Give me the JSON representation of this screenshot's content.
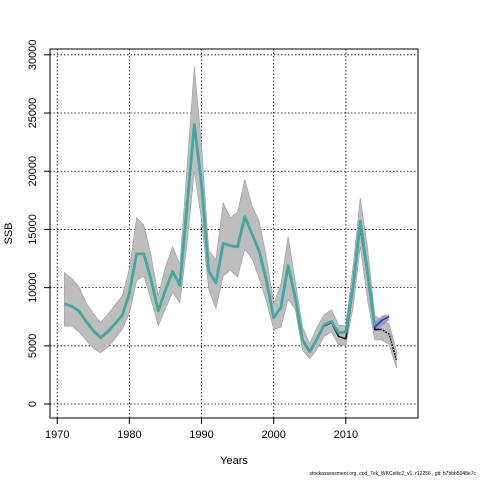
{
  "chart_data": {
    "type": "line",
    "title": "",
    "xlabel": "Years",
    "ylabel": "SSB",
    "xlim": [
      1969,
      2020
    ],
    "ylim": [
      -1200,
      30500
    ],
    "x_ticks": [
      1970,
      1980,
      1990,
      2000,
      2010
    ],
    "y_ticks": [
      0,
      5000,
      10000,
      15000,
      20000,
      25000,
      30000
    ],
    "grid": true,
    "legend": "none",
    "colors": {
      "band": "#bdbdbd",
      "band_edge": "#9a9a9a",
      "main": "#40a8a0",
      "previous": "#111111",
      "retro_line": "#3b3b9e",
      "retro_band": "#8a8ad6"
    },
    "confidence_band": {
      "x": [
        1971,
        1972,
        1973,
        1974,
        1975,
        1976,
        1977,
        1978,
        1979,
        1980,
        1981,
        1982,
        1983,
        1984,
        1985,
        1986,
        1987,
        1988,
        1989,
        1990,
        1991,
        1992,
        1993,
        1994,
        1995,
        1996,
        1997,
        1998,
        1999,
        2000,
        2001,
        2002,
        2003,
        2004,
        2005,
        2006,
        2007,
        2008,
        2009,
        2010,
        2011,
        2012,
        2013,
        2014,
        2015,
        2016,
        2017
      ],
      "lower": [
        6700,
        6700,
        6200,
        5500,
        4800,
        4400,
        4900,
        5600,
        6400,
        7800,
        10600,
        11000,
        9000,
        6700,
        8200,
        9600,
        8700,
        13800,
        20000,
        15800,
        9800,
        8200,
        11000,
        11500,
        10900,
        13300,
        12500,
        10800,
        8800,
        6400,
        6600,
        9000,
        8100,
        4600,
        3900,
        4700,
        5800,
        6200,
        5100,
        5000,
        8300,
        13500,
        9000,
        5500,
        5500,
        5100,
        3100
      ],
      "upper": [
        11300,
        10800,
        10100,
        8700,
        7800,
        7000,
        7700,
        8500,
        9300,
        11600,
        16000,
        15400,
        12800,
        9300,
        11800,
        13500,
        12000,
        20400,
        29000,
        22300,
        13200,
        12400,
        17300,
        16000,
        16500,
        19300,
        17000,
        15700,
        12600,
        8600,
        10300,
        14400,
        10500,
        6600,
        5200,
        6600,
        7700,
        8100,
        6800,
        6700,
        11900,
        17700,
        13500,
        7600,
        7200,
        6900,
        4600
      ]
    },
    "series": [
      {
        "x": [
          1971,
          1972,
          1973,
          1974,
          1975,
          1976,
          1977,
          1978,
          1979,
          1980,
          1981,
          1982,
          1983,
          1984,
          1985,
          1986,
          1987,
          1988,
          1989,
          1990,
          1991,
          1992,
          1993,
          1994,
          1995,
          1996,
          1997,
          1998,
          1999,
          2000,
          2001,
          2002,
          2003,
          2004,
          2005,
          2006,
          2007,
          2008,
          2009,
          2010,
          2011,
          2012,
          2013,
          2014
        ],
        "values": [
          8600,
          8400,
          8000,
          7100,
          6300,
          5700,
          6200,
          6900,
          7600,
          9500,
          12900,
          12900,
          10700,
          8000,
          9800,
          11400,
          10200,
          17100,
          24000,
          18900,
          11400,
          10400,
          13800,
          13600,
          13500,
          16100,
          14600,
          13100,
          10600,
          7400,
          8300,
          11900,
          9100,
          5500,
          4500,
          5600,
          6800,
          7100,
          6100,
          6200,
          10100,
          15700,
          11400,
          6600
        ]
      },
      {
        "x": [
          2006,
          2007,
          2008,
          2009,
          2010,
          2011,
          2012,
          2013,
          2014,
          2015,
          2016,
          2017
        ],
        "values": [
          5700,
          6700,
          7000,
          5800,
          5600,
          9900,
          15200,
          11000,
          6400,
          6400,
          6000,
          3800
        ]
      },
      {
        "x": [
          2014,
          2015,
          2016
        ],
        "values": [
          6600,
          7200,
          7500
        ]
      }
    ],
    "retro_band": {
      "x": [
        2014,
        2015,
        2016
      ],
      "lower": [
        6200,
        6700,
        7200
      ],
      "upper": [
        7000,
        7600,
        7700
      ]
    }
  },
  "footer": "stockassessment.org, cod_7ek_WKCeltic2_v1, r12256 , git: b7bbb5048e7c"
}
